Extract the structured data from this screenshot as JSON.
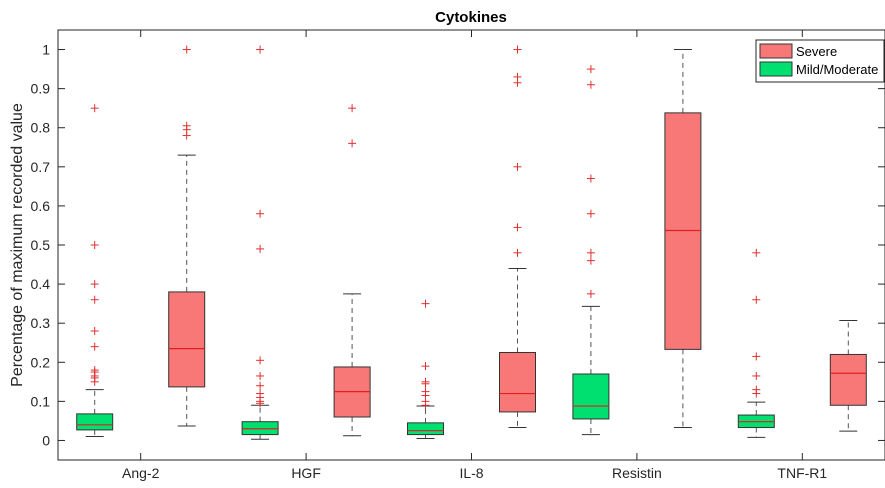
{
  "chart_data": {
    "type": "box",
    "title": "Cytokines",
    "xlabel": "",
    "ylabel": "Percentage of maximum recorded value",
    "ylim": [
      -0.05,
      1.05
    ],
    "yticks": [
      0,
      0.1,
      0.2,
      0.3,
      0.4,
      0.5,
      0.6,
      0.7,
      0.8,
      0.9,
      1
    ],
    "ytick_labels": [
      "0",
      "0.1",
      "0.2",
      "0.3",
      "0.4",
      "0.5",
      "0.6",
      "0.7",
      "0.8",
      "0.9",
      "1"
    ],
    "categories": [
      "Ang-2",
      "HGF",
      "IL-8",
      "Resistin",
      "TNF-R1"
    ],
    "grid": false,
    "legend_position": "top-right",
    "series": [
      {
        "name": "Mild/Moderate",
        "color": "#00e070",
        "boxes": [
          {
            "min": 0.01,
            "q1": 0.027,
            "median": 0.04,
            "q3": 0.068,
            "max": 0.13,
            "outliers": [
              0.15,
              0.16,
              0.165,
              0.175,
              0.18,
              0.24,
              0.28,
              0.36,
              0.4,
              0.5,
              0.85
            ]
          },
          {
            "min": 0.003,
            "q1": 0.015,
            "median": 0.03,
            "q3": 0.048,
            "max": 0.09,
            "outliers": [
              0.095,
              0.1,
              0.11,
              0.12,
              0.14,
              0.165,
              0.205,
              0.49,
              0.58,
              1.0
            ]
          },
          {
            "min": 0.005,
            "q1": 0.015,
            "median": 0.025,
            "q3": 0.045,
            "max": 0.088,
            "outliers": [
              0.09,
              0.1,
              0.115,
              0.125,
              0.145,
              0.15,
              0.19,
              0.35
            ]
          },
          {
            "min": 0.015,
            "q1": 0.055,
            "median": 0.088,
            "q3": 0.17,
            "max": 0.343,
            "outliers": [
              0.375,
              0.46,
              0.48,
              0.58,
              0.67,
              0.91,
              0.95
            ]
          },
          {
            "min": 0.008,
            "q1": 0.033,
            "median": 0.048,
            "q3": 0.065,
            "max": 0.098,
            "outliers": [
              0.12,
              0.13,
              0.165,
              0.215,
              0.36,
              0.48
            ]
          }
        ]
      },
      {
        "name": "Severe",
        "color": "#f87878",
        "boxes": [
          {
            "min": 0.037,
            "q1": 0.137,
            "median": 0.235,
            "q3": 0.38,
            "max": 0.73,
            "outliers": [
              0.78,
              0.795,
              0.805,
              1.0
            ]
          },
          {
            "min": 0.012,
            "q1": 0.06,
            "median": 0.125,
            "q3": 0.188,
            "max": 0.375,
            "outliers": [
              0.76,
              0.85
            ]
          },
          {
            "min": 0.033,
            "q1": 0.073,
            "median": 0.12,
            "q3": 0.225,
            "max": 0.44,
            "outliers": [
              0.48,
              0.545,
              0.7,
              0.915,
              0.93,
              1.0
            ]
          },
          {
            "min": 0.033,
            "q1": 0.233,
            "median": 0.537,
            "q3": 0.838,
            "max": 1.0,
            "outliers": []
          },
          {
            "min": 0.024,
            "q1": 0.09,
            "median": 0.172,
            "q3": 0.22,
            "max": 0.307,
            "outliers": []
          }
        ]
      }
    ]
  }
}
